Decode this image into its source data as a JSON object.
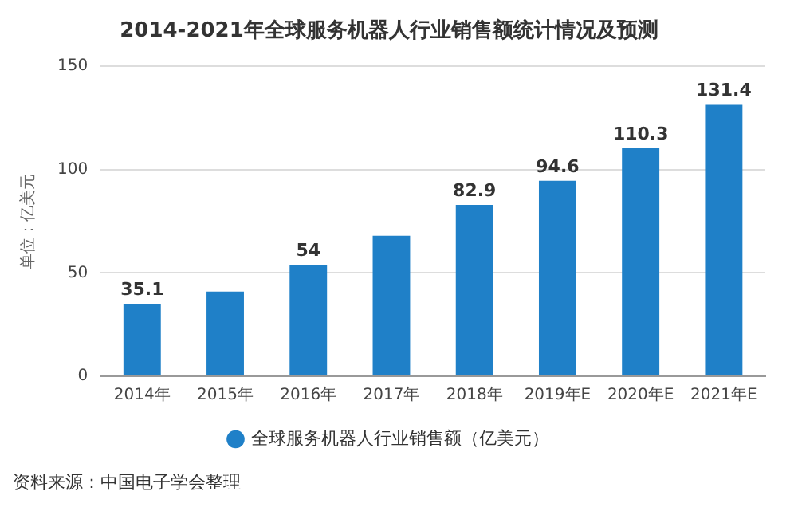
{
  "chart_data": {
    "type": "bar",
    "title": "2014-2021年全球服务机器人行业销售额统计情况及预测",
    "ylabel": "单位：亿美元",
    "categories": [
      "2014年",
      "2015年",
      "2016年",
      "2017年",
      "2018年",
      "2019年E",
      "2020年E",
      "2021年E"
    ],
    "series": [
      {
        "name": "全球服务机器人行业销售额（亿美元）",
        "color": "#1f80c8",
        "values": [
          35.1,
          41,
          54,
          68,
          82.9,
          94.6,
          110.3,
          131.4
        ],
        "value_labels": [
          "35.1",
          null,
          "54",
          null,
          "82.9",
          "94.6",
          "110.3",
          "131.4"
        ]
      }
    ],
    "ylim": [
      0,
      150
    ],
    "yticks": [
      0,
      50,
      100,
      150
    ],
    "grid": "y",
    "legend": "bottom",
    "annotations": [
      "资料来源：中国电子学会整理"
    ]
  }
}
